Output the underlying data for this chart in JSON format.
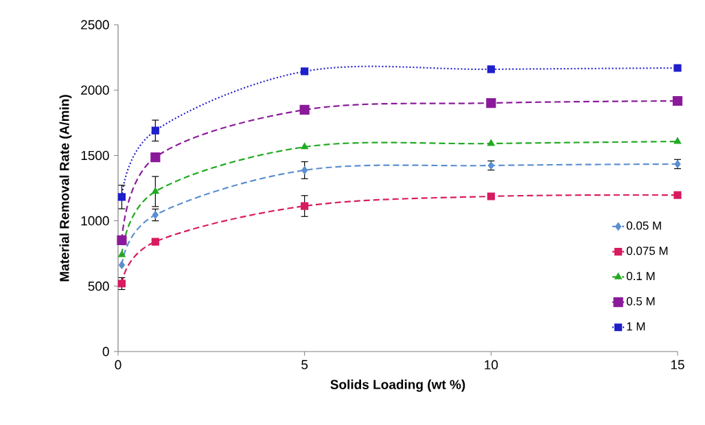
{
  "chart_data": {
    "type": "line",
    "xlabel": "Solids Loading (wt %)",
    "ylabel": "Material Removal Rate (A/min)",
    "x": [
      0.1,
      1,
      5,
      10,
      15
    ],
    "series": [
      {
        "name": "0.05 M",
        "color": "#5b8fd0",
        "marker": "diamond",
        "line_style": "dashed",
        "values": [
          662,
          1045,
          1387,
          1423,
          1434
        ],
        "errors": [
          null,
          45,
          65,
          35,
          35
        ]
      },
      {
        "name": "0.075 M",
        "color": "#d81b60",
        "marker": "square",
        "line_style": "dashed",
        "values": [
          520,
          840,
          1113,
          1187,
          1197
        ],
        "errors": [
          45,
          null,
          80,
          null,
          null
        ]
      },
      {
        "name": "0.1 M",
        "color": "#22aa22",
        "marker": "triangle",
        "line_style": "dashed",
        "values": [
          740,
          1224,
          1565,
          1591,
          1607
        ],
        "errors": [
          null,
          115,
          null,
          null,
          null
        ]
      },
      {
        "name": "0.5 M",
        "color": "#8b1a9b",
        "marker": "square",
        "line_style": "dashed",
        "values": [
          851,
          1486,
          1849,
          1901,
          1917
        ]
      },
      {
        "name": "1 M",
        "color": "#1f1fcc",
        "marker": "square",
        "line_style": "dotted",
        "values": [
          1182,
          1690,
          2143,
          2159,
          2169
        ],
        "errors": [
          90,
          80,
          null,
          null,
          null
        ]
      }
    ],
    "xlim": [
      0,
      15
    ],
    "xticks": [
      0,
      5,
      10,
      15
    ],
    "ylim": [
      0,
      2500
    ],
    "yticks": [
      0,
      500,
      1000,
      1500,
      2000,
      2500
    ],
    "legend": "bottom right",
    "grid": false
  }
}
